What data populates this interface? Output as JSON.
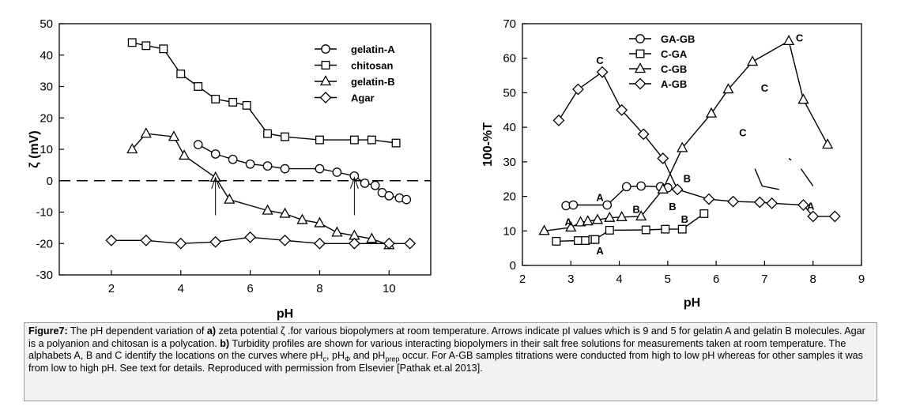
{
  "chart_data": [
    {
      "type": "line",
      "panel": "a",
      "title": "",
      "xlabel": "pH",
      "ylabel": "ζ (mV)",
      "xlim": [
        0.5,
        11.2
      ],
      "ylim": [
        -30,
        50
      ],
      "xticks": [
        2,
        4,
        6,
        8,
        10
      ],
      "yticks": [
        50,
        40,
        30,
        20,
        10,
        0,
        -10,
        -20,
        -30
      ],
      "legend_position": "top-right",
      "zero_reference_line": 0,
      "series": [
        {
          "name": "gelatin-A",
          "marker": "circle",
          "x": [
            4.5,
            5.0,
            5.5,
            6.0,
            6.5,
            7.0,
            8.0,
            8.5,
            9.0,
            9.3,
            9.6,
            9.8,
            10.0,
            10.3,
            10.5
          ],
          "y": [
            11.5,
            8.5,
            6.8,
            5.3,
            4.7,
            3.8,
            3.8,
            2.7,
            1.5,
            -0.8,
            -1.5,
            -3.8,
            -4.8,
            -5.5,
            -6.0
          ]
        },
        {
          "name": "chitosan",
          "marker": "square",
          "x": [
            2.6,
            3.0,
            3.5,
            4.0,
            4.5,
            5.0,
            5.5,
            5.9,
            6.5,
            7.0,
            8.0,
            9.0,
            9.5,
            10.2
          ],
          "y": [
            44,
            43,
            42,
            34,
            30,
            26,
            25,
            24,
            15,
            14,
            13,
            13,
            13,
            12
          ]
        },
        {
          "name": "gelatin-B",
          "marker": "triangle",
          "x": [
            2.6,
            3.0,
            3.8,
            4.1,
            5.0,
            5.4,
            6.5,
            7.0,
            7.5,
            8.0,
            8.5,
            9.0,
            9.5,
            10.0
          ],
          "y": [
            10,
            15,
            14,
            8,
            1,
            -6,
            -9.5,
            -10.5,
            -12.5,
            -13.5,
            -16.5,
            -17.5,
            -18.5,
            -20.5
          ]
        },
        {
          "name": "Agar",
          "marker": "diamond",
          "x": [
            2.0,
            3.0,
            4.0,
            5.0,
            6.0,
            7.0,
            8.0,
            9.0,
            10.0,
            10.6
          ],
          "y": [
            -19,
            -19,
            -20,
            -19.5,
            -18,
            -19,
            -20,
            -20,
            -20,
            -20
          ]
        }
      ],
      "annotations": [
        {
          "type": "arrow",
          "x": 5,
          "y_from": -11,
          "y_to": 1,
          "meaning": "pI of gelatin B"
        },
        {
          "type": "arrow",
          "x": 9,
          "y_from": -11,
          "y_to": 1,
          "meaning": "pI of gelatin A"
        }
      ]
    },
    {
      "type": "line",
      "panel": "b",
      "title": "",
      "xlabel": "pH",
      "ylabel": "100-%T",
      "xlim": [
        2,
        9
      ],
      "ylim": [
        0,
        70
      ],
      "xticks": [
        2,
        3,
        4,
        5,
        6,
        7,
        8,
        9
      ],
      "yticks": [
        70,
        60,
        50,
        40,
        30,
        20,
        10,
        0
      ],
      "legend_position": "top-left",
      "series": [
        {
          "name": "GA-GB",
          "marker": "circle",
          "x": [
            2.9,
            3.05,
            3.75,
            4.15,
            4.45,
            4.85,
            5.0
          ],
          "y": [
            17.3,
            17.5,
            17.5,
            22.8,
            23.0,
            22.8,
            22.5
          ],
          "extra_segments": [
            {
              "x": [
                7.5,
                7.55
              ],
              "y": [
                31,
                30.5
              ]
            },
            {
              "x": [
                7.75,
                8.0
              ],
              "y": [
                28,
                23
              ]
            }
          ]
        },
        {
          "name": "C-GA",
          "marker": "square",
          "x": [
            2.7,
            3.15,
            3.3,
            3.45,
            3.5,
            3.8,
            4.55,
            4.95,
            5.3,
            5.75
          ],
          "y": [
            7,
            7.2,
            7.2,
            7.5,
            7.5,
            10.2,
            10.3,
            10.5,
            10.5,
            15
          ],
          "extra_segments": [
            {
              "x": [
                6.8,
                6.95,
                7.3
              ],
              "y": [
                28,
                23,
                22
              ]
            }
          ]
        },
        {
          "name": "C-GB",
          "marker": "triangle",
          "x": [
            2.45,
            3.0,
            3.2,
            3.35,
            3.55,
            3.8,
            4.05,
            4.45,
            4.9,
            5.3,
            5.9,
            6.25,
            6.75,
            7.5,
            7.8,
            8.3
          ],
          "y": [
            10,
            11,
            12.5,
            12.8,
            13.2,
            13.8,
            14,
            14.2,
            22,
            34,
            44,
            51,
            59,
            65,
            48,
            35
          ]
        },
        {
          "name": "A-GB",
          "marker": "diamond",
          "x": [
            2.75,
            3.15,
            3.65,
            4.05,
            4.5,
            4.9,
            5.2,
            5.85,
            6.35,
            6.9,
            7.15,
            7.8,
            8.0,
            8.45
          ],
          "y": [
            42,
            51,
            56,
            45,
            38,
            31,
            22,
            19.2,
            18.5,
            18.3,
            18,
            17.5,
            14.2,
            14.2
          ]
        }
      ],
      "point_letters": [
        {
          "text": "C",
          "x": 3.6,
          "y": 59.5
        },
        {
          "text": "C",
          "x": 7.72,
          "y": 66
        },
        {
          "text": "C",
          "x": 7.0,
          "y": 51.5
        },
        {
          "text": "C",
          "x": 6.55,
          "y": 38.5
        },
        {
          "text": "A",
          "x": 3.6,
          "y": 19.8
        },
        {
          "text": "A",
          "x": 2.95,
          "y": 12.7
        },
        {
          "text": "A",
          "x": 7.95,
          "y": 17.3
        },
        {
          "text": "A",
          "x": 3.6,
          "y": 4.3
        },
        {
          "text": "B",
          "x": 4.35,
          "y": 16.3
        },
        {
          "text": "B",
          "x": 5.4,
          "y": 25.3
        },
        {
          "text": "B",
          "x": 5.1,
          "y": 17.2
        },
        {
          "text": "B",
          "x": 5.35,
          "y": 13.5
        }
      ]
    }
  ],
  "caption": {
    "label": "Figure7:",
    "seg1": " The pH dependent variation of ",
    "part_a": "a)",
    "seg2": " zeta potential  ζ .for various biopolymers at room temperature. Arrows indicate pI values which is 9 and 5 for gelatin A and gelatin B molecules. Agar is a polyanion and chitosan is a polycation. ",
    "part_b": "b)",
    "seg3": " Turbidity profiles are shown for various interacting biopolymers in their salt free solutions for measurements taken at room temperature. The alphabets A, B and C identify the locations on the curves where pH",
    "sub_c": "c",
    "seg4": ", pH",
    "sub_phi": "Φ",
    "seg5": " and pH",
    "sub_prep": "prep",
    "seg6": " occur. For A-GB samples titrations were conducted from high to low pH whereas for other samples it was from low to high pH. See text for details. Reproduced with permission from Elsevier [Pathak et.al 2013]."
  }
}
